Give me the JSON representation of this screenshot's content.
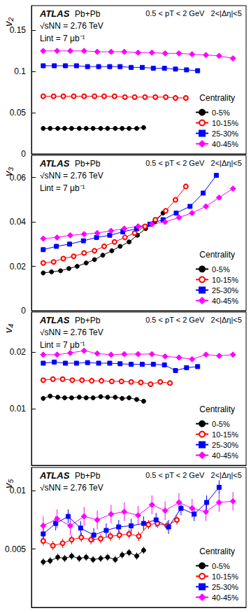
{
  "chart_data": [
    {
      "type": "line",
      "ylabel": "v₂",
      "xlim": [
        0,
        31
      ],
      "ylim": [
        0,
        0.18
      ],
      "yticks": [
        0,
        0.05,
        0.1,
        0.15
      ],
      "tick_labels": "y",
      "grid": false,
      "legend": "lower right",
      "legend_title": "Centrality",
      "annotations": {
        "experiment": "ATLAS",
        "system": "Pb+Pb",
        "energy": "√sNN = 2.76 TeV",
        "luminosity": "Lint = 7 μb⁻¹",
        "cuts": "0.5 < pT < 2 GeV   2<|Δη|<5"
      },
      "series": [
        {
          "name": "0-5%",
          "color": "#000000",
          "marker": "circle",
          "line_style": "solid",
          "x": [
            1.7,
            2.7,
            3.8,
            4.8,
            5.8,
            6.9,
            7.9,
            8.9,
            10.0,
            11.0,
            12.1,
            13.1,
            14.1,
            15.2,
            16.2
          ],
          "values": [
            0.031,
            0.031,
            0.031,
            0.031,
            0.031,
            0.031,
            0.031,
            0.031,
            0.031,
            0.031,
            0.031,
            0.031,
            0.031,
            0.031,
            0.032
          ]
        },
        {
          "name": "10-15%",
          "color": "#ff0000",
          "marker": "circle_open",
          "line_style": "solid",
          "x": [
            1.7,
            3.2,
            4.6,
            6.1,
            7.6,
            9.1,
            10.5,
            12.0,
            13.5,
            14.9,
            16.4,
            17.9,
            19.4,
            20.8,
            22.3
          ],
          "values": [
            0.07,
            0.07,
            0.07,
            0.07,
            0.07,
            0.07,
            0.07,
            0.07,
            0.069,
            0.069,
            0.069,
            0.069,
            0.069,
            0.068,
            0.068
          ]
        },
        {
          "name": "25-30%",
          "color": "#0000ff",
          "marker": "square",
          "line_style": "solid",
          "x": [
            1.7,
            3.3,
            4.9,
            6.5,
            8.1,
            9.7,
            11.3,
            12.8,
            14.4,
            16.0,
            17.6,
            19.2,
            20.8,
            22.4,
            24.0
          ],
          "values": [
            0.107,
            0.107,
            0.107,
            0.107,
            0.106,
            0.106,
            0.106,
            0.106,
            0.105,
            0.105,
            0.104,
            0.104,
            0.103,
            0.102,
            0.101
          ]
        },
        {
          "name": "40-45%",
          "color": "#ff00ff",
          "marker": "diamond",
          "line_style": "solid",
          "x": [
            1.7,
            3.7,
            5.6,
            7.6,
            9.5,
            11.5,
            13.4,
            15.4,
            17.4,
            19.3,
            21.3,
            23.2,
            25.2,
            27.1,
            29.1
          ],
          "values": [
            0.125,
            0.125,
            0.125,
            0.125,
            0.124,
            0.124,
            0.124,
            0.123,
            0.123,
            0.122,
            0.122,
            0.121,
            0.12,
            0.119,
            0.116
          ]
        }
      ]
    },
    {
      "type": "line",
      "ylabel": "v₃",
      "xlim": [
        0,
        31
      ],
      "ylim": [
        0,
        0.07
      ],
      "yticks": [
        0,
        0.02,
        0.04,
        0.06
      ],
      "tick_labels": "y",
      "grid": false,
      "legend": "lower right",
      "legend_title": "Centrality",
      "annotations": {
        "experiment": "ATLAS",
        "system": "Pb+Pb",
        "energy": "√sNN = 2.76 TeV",
        "luminosity": "Lint = 7 μb⁻¹",
        "cuts": "0.5 < pT < 2 GeV   2<|Δη|<5"
      },
      "series": [
        {
          "name": "0-5%",
          "color": "#000000",
          "marker": "circle",
          "line_style": "solid",
          "x": [
            1.7,
            2.9,
            4.2,
            5.4,
            6.6,
            7.9,
            9.1,
            10.3,
            11.6,
            12.8,
            14.1,
            15.3,
            16.5,
            17.8,
            19.0
          ],
          "values": [
            0.017,
            0.0175,
            0.018,
            0.019,
            0.02,
            0.0215,
            0.023,
            0.025,
            0.027,
            0.029,
            0.031,
            0.034,
            0.037,
            0.04,
            0.044
          ]
        },
        {
          "name": "10-15%",
          "color": "#ff0000",
          "marker": "circle_open",
          "line_style": "solid",
          "x": [
            1.7,
            3.2,
            4.6,
            6.1,
            7.6,
            9.1,
            10.5,
            12.0,
            13.5,
            14.9,
            16.4,
            17.9,
            19.4,
            20.8,
            22.3
          ],
          "values": [
            0.0215,
            0.022,
            0.0235,
            0.0245,
            0.026,
            0.027,
            0.029,
            0.031,
            0.033,
            0.035,
            0.038,
            0.041,
            0.045,
            0.05,
            0.056
          ]
        },
        {
          "name": "25-30%",
          "color": "#0000ff",
          "marker": "square",
          "line_style": "solid",
          "x": [
            1.7,
            3.6,
            5.5,
            7.5,
            9.4,
            11.3,
            13.2,
            15.2,
            17.1,
            19.0,
            20.9,
            22.9,
            24.8,
            26.7
          ],
          "values": [
            0.0275,
            0.029,
            0.03,
            0.0315,
            0.033,
            0.034,
            0.0355,
            0.037,
            0.039,
            0.041,
            0.044,
            0.047,
            0.053,
            0.061
          ]
        },
        {
          "name": "40-45%",
          "color": "#ff00ff",
          "marker": "diamond",
          "line_style": "solid",
          "x": [
            1.7,
            3.7,
            5.6,
            7.6,
            9.5,
            11.5,
            13.4,
            15.4,
            17.4,
            19.3,
            21.3,
            23.2,
            25.2,
            27.1,
            29.1
          ],
          "values": [
            0.0325,
            0.033,
            0.034,
            0.0345,
            0.035,
            0.036,
            0.037,
            0.038,
            0.039,
            0.04,
            0.042,
            0.044,
            0.047,
            0.051,
            0.055
          ]
        }
      ]
    },
    {
      "type": "line",
      "ylabel": "v₄",
      "xlim": [
        0,
        31
      ],
      "ylim": [
        0,
        0.027
      ],
      "yticks": [
        0.01,
        0.02
      ],
      "tick_labels": "y",
      "grid": false,
      "legend": "lower right",
      "legend_title": "Centrality",
      "annotations": {
        "experiment": "ATLAS",
        "system": "Pb+Pb",
        "energy": "√sNN = 2.76 TeV",
        "luminosity": "Lint = 7 μb⁻¹",
        "cuts": "0.5 < pT < 2 GeV   2<|Δη|<5"
      },
      "series": [
        {
          "name": "0-5%",
          "color": "#000000",
          "marker": "circle",
          "line_style": "solid",
          "x": [
            1.7,
            2.7,
            3.8,
            4.8,
            5.8,
            6.9,
            7.9,
            8.9,
            10.0,
            11.0,
            12.1,
            13.1,
            14.1,
            15.2,
            16.2
          ],
          "values": [
            0.0118,
            0.0122,
            0.012,
            0.0119,
            0.0119,
            0.012,
            0.0119,
            0.0119,
            0.0121,
            0.012,
            0.012,
            0.0118,
            0.0119,
            0.0116,
            0.0113
          ]
        },
        {
          "name": "10-15%",
          "color": "#ff0000",
          "marker": "circle_open",
          "line_style": "solid",
          "x": [
            1.7,
            3.1,
            4.5,
            5.9,
            7.3,
            8.7,
            10.1,
            11.6,
            13.0,
            14.4,
            15.8,
            17.2,
            18.6,
            20.0
          ],
          "values": [
            0.015,
            0.0152,
            0.0152,
            0.015,
            0.015,
            0.0149,
            0.0149,
            0.0148,
            0.0148,
            0.0147,
            0.0146,
            0.0143,
            0.0147,
            0.0145
          ]
        },
        {
          "name": "25-30%",
          "color": "#0000ff",
          "marker": "square",
          "line_style": "solid",
          "x": [
            1.7,
            3.3,
            4.9,
            6.5,
            8.1,
            9.7,
            11.3,
            12.8,
            14.4,
            16.0,
            17.6,
            19.2,
            20.8,
            22.4,
            24.0
          ],
          "values": [
            0.018,
            0.0182,
            0.018,
            0.018,
            0.0181,
            0.018,
            0.018,
            0.0179,
            0.0178,
            0.0178,
            0.0178,
            0.0177,
            0.0167,
            0.0172,
            0.0174
          ]
        },
        {
          "name": "40-45%",
          "color": "#ff00ff",
          "marker": "diamond",
          "line_style": "solid",
          "x": [
            1.7,
            3.7,
            5.6,
            7.6,
            9.5,
            11.5,
            13.4,
            15.4,
            17.4,
            19.3,
            21.3,
            23.2,
            25.2,
            27.1,
            29.1
          ],
          "values": [
            0.0195,
            0.0195,
            0.0198,
            0.0202,
            0.0197,
            0.0195,
            0.0196,
            0.0196,
            0.0196,
            0.0192,
            0.019,
            0.0187,
            0.0195,
            0.0193,
            0.0195
          ]
        }
      ]
    },
    {
      "type": "line",
      "ylabel": "v₅",
      "xlim": [
        0,
        31
      ],
      "ylim": [
        0,
        0.012
      ],
      "yticks": [
        0.005,
        0.01
      ],
      "tick_labels": "y",
      "grid": false,
      "legend": "lower right",
      "legend_title": "Centrality",
      "annotations": {
        "experiment": "ATLAS",
        "system": "Pb+Pb",
        "energy": "√sNN = 2.76 TeV",
        "cuts": "0.5 < pT < 2 GeV   2<|Δη|<5"
      },
      "series": [
        {
          "name": "0-5%",
          "color": "#000000",
          "marker": "circle",
          "line_style": "solid",
          "x": [
            1.7,
            2.7,
            3.8,
            4.8,
            5.8,
            6.9,
            7.9,
            8.9,
            10.0,
            11.0,
            12.1,
            13.1,
            14.1,
            15.2,
            16.2
          ],
          "values": [
            0.0039,
            0.004,
            0.0043,
            0.0042,
            0.0044,
            0.0042,
            0.0043,
            0.0041,
            0.0042,
            0.0043,
            0.0041,
            0.0045,
            0.0047,
            0.0044,
            0.0049
          ],
          "errors": [
            0.0003,
            0.0003,
            0.0003,
            0.0003,
            0.0003,
            0.0003,
            0.0003,
            0.0003,
            0.0003,
            0.0003,
            0.0003,
            0.0003,
            0.0003,
            0.0003,
            0.0003
          ]
        },
        {
          "name": "10-15%",
          "color": "#ff0000",
          "marker": "circle_open",
          "line_style": "solid",
          "x": [
            1.7,
            3.1,
            4.5,
            5.8,
            7.2,
            8.6,
            10.0,
            11.4,
            12.7,
            14.1,
            15.5,
            16.9,
            18.2,
            19.6,
            21.0
          ],
          "values": [
            0.0057,
            0.0053,
            0.0055,
            0.0058,
            0.006,
            0.0058,
            0.0059,
            0.0061,
            0.0062,
            0.0063,
            0.0061,
            0.0071,
            0.0072,
            0.007,
            0.0075
          ],
          "errors": [
            0.0004,
            0.0004,
            0.0004,
            0.0004,
            0.0004,
            0.0004,
            0.0004,
            0.0004,
            0.0004,
            0.0004,
            0.0004,
            0.0004,
            0.0004,
            0.0004,
            0.0004
          ]
        },
        {
          "name": "25-30%",
          "color": "#0000ff",
          "marker": "square",
          "line_style": "solid",
          "x": [
            1.7,
            3.5,
            5.3,
            7.1,
            9.0,
            10.8,
            12.6,
            14.4,
            16.2,
            18.0,
            19.8,
            21.6,
            23.5,
            25.3,
            27.1
          ],
          "values": [
            0.0063,
            0.0072,
            0.0078,
            0.0068,
            0.0062,
            0.0066,
            0.0069,
            0.007,
            0.0072,
            0.0075,
            0.0069,
            0.0085,
            0.008,
            0.009,
            0.0103
          ],
          "errors": [
            0.0006,
            0.0006,
            0.0006,
            0.0006,
            0.0006,
            0.0006,
            0.0006,
            0.0006,
            0.0006,
            0.0006,
            0.0006,
            0.0006,
            0.0006,
            0.0006,
            0.0006
          ]
        },
        {
          "name": "40-45%",
          "color": "#ff00ff",
          "marker": "diamond",
          "line_style": "solid",
          "x": [
            1.7,
            3.7,
            5.6,
            7.6,
            9.5,
            11.5,
            13.4,
            15.4,
            17.4,
            19.3,
            21.3,
            23.2,
            25.2,
            27.1,
            29.1
          ],
          "values": [
            0.007,
            0.0076,
            0.007,
            0.0078,
            0.0075,
            0.008,
            0.0082,
            0.0079,
            0.0088,
            0.0083,
            0.009,
            0.0085,
            0.0082,
            0.009,
            0.0091
          ],
          "errors": [
            0.0008,
            0.0008,
            0.0008,
            0.0008,
            0.0008,
            0.0008,
            0.0008,
            0.0008,
            0.0008,
            0.0008,
            0.0008,
            0.0008,
            0.0008,
            0.0008,
            0.0008
          ]
        }
      ]
    }
  ]
}
